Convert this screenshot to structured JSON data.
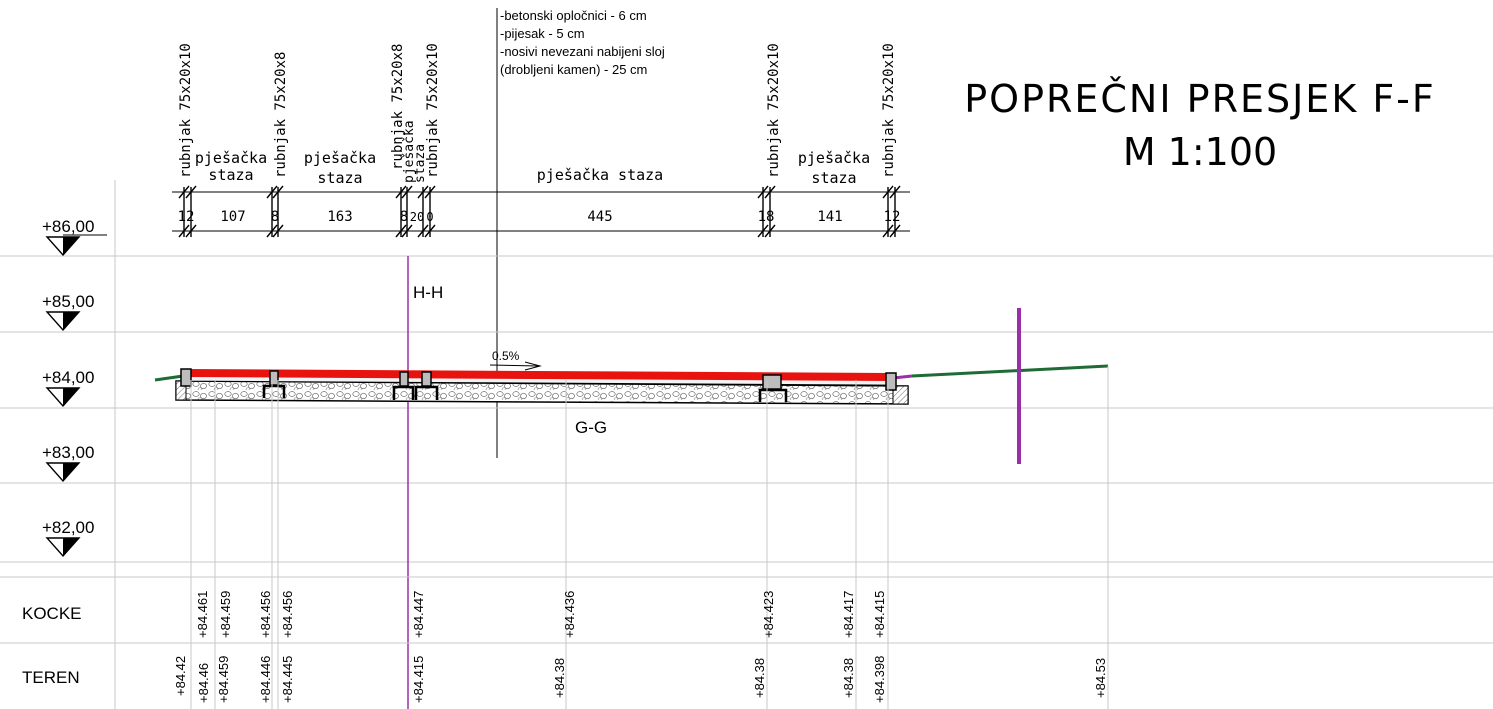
{
  "title": {
    "line1": "POPREČNI PRESJEK F-F",
    "line2": "M 1:100"
  },
  "layers_note": [
    "-betonski opločnici - 6 cm",
    "-pijesak - 5 cm",
    "-nosivi nevezani nabijeni sloj",
    " (drobljeni kamen) - 25 cm"
  ],
  "elevation_levels": [
    "+86,00",
    "+85,00",
    "+84,00",
    "+83,00",
    "+82,00"
  ],
  "top_labels": {
    "curbs": [
      "rubnjak 75x20x10",
      "rubnjak 75x20x8",
      "rubnjak 75x20x8",
      "rubnjak 75x20x10",
      "rubnjak 75x20x10",
      "rubnjak 75x20x10"
    ],
    "walkways": [
      {
        "line1": "pješačka",
        "line2": "staza"
      },
      {
        "line1": "pješačka",
        "line2": "staza"
      },
      {
        "line1": "pješačka",
        "line2": "staza"
      },
      {
        "line1": "pješačka staza",
        "line2": ""
      },
      {
        "line1": "pješačka",
        "line2": "staza"
      }
    ]
  },
  "dimensions": [
    "12",
    "107",
    "8",
    "163",
    "8",
    "20",
    "0",
    "445",
    "18",
    "141",
    "12"
  ],
  "section_marks": {
    "upper": "H-H",
    "lower": "G-G"
  },
  "slope_label": "0.5%",
  "table": {
    "row1_label": "KOCKE",
    "row2_label": "TEREN",
    "kocke": [
      "+84.461",
      "+84.459",
      "+84.456",
      "+84.456",
      "+84.447",
      "+84.436",
      "+84.423",
      "+84.417",
      "+84.415"
    ],
    "teren": [
      "+84.42",
      "+84.46",
      "+84.459",
      "+84.446",
      "+84.445",
      "+84.415",
      "+84.38",
      "+84.38",
      "+84.38",
      "+84.398",
      "+84.53"
    ]
  },
  "colors": {
    "paving": "#e8130f",
    "terrain": "#1f6b35",
    "section_marker": "#9b2fa8",
    "grid": "#c8c8c8",
    "line": "#000000"
  }
}
